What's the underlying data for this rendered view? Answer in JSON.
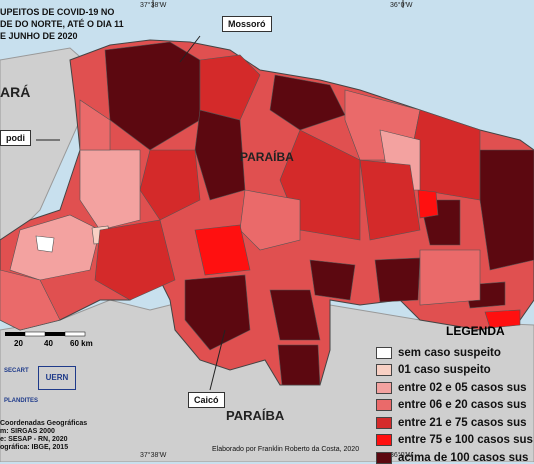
{
  "title": {
    "lines": [
      "UPEITOS DE COVID-19 NO",
      "DE DO NORTE, ATÉ O DIA 11",
      "E JUNHO DE 2020"
    ]
  },
  "callouts": {
    "mossoro": "Mossoró",
    "apodi": "podi",
    "caico": "Caicó"
  },
  "state_labels": {
    "ceara": "ARÁ",
    "paraiba_top": "PARAÍBA",
    "paraiba_bottom": "PARAÍBA"
  },
  "coordinates": {
    "top_left": "37°38'W",
    "top_right": "36°0'W",
    "bottom_left": "37°38'W",
    "bottom_right": "36°0'W"
  },
  "scale": {
    "labels": [
      "20",
      "40",
      "60 km"
    ]
  },
  "legend": {
    "title": "LEGENDA",
    "items": [
      {
        "label": "sem caso suspeito",
        "color": "#ffffff"
      },
      {
        "label": "01 caso suspeito",
        "color": "#f8d0c4"
      },
      {
        "label": "entre 02 e 05 casos sus",
        "color": "#f3a2a0"
      },
      {
        "label": "entre 06 e 20 casos sus",
        "color": "#ea6a6a"
      },
      {
        "label": "entre 21 e 75 casos sus",
        "color": "#d42a2a"
      },
      {
        "label": "entre 75 e 100 casos sus",
        "color": "#ff1010"
      },
      {
        "label": "acima de 100 casos sus",
        "color": "#5c0810"
      }
    ]
  },
  "footer": {
    "credit": "Elaborado por Franklin Roberto da Costa, 2020",
    "notes": [
      "Coordenadas Geográficas",
      "m: SIRGAS 2000",
      "e: SESAP - RN, 2020",
      "ográfica: IBGE, 2015"
    ],
    "logos": [
      "SECART",
      "UERN",
      "PLANDITES"
    ]
  },
  "colors": {
    "water": "#c8e0ee",
    "neighbor": "#cfcfcf",
    "border": "#444444"
  }
}
